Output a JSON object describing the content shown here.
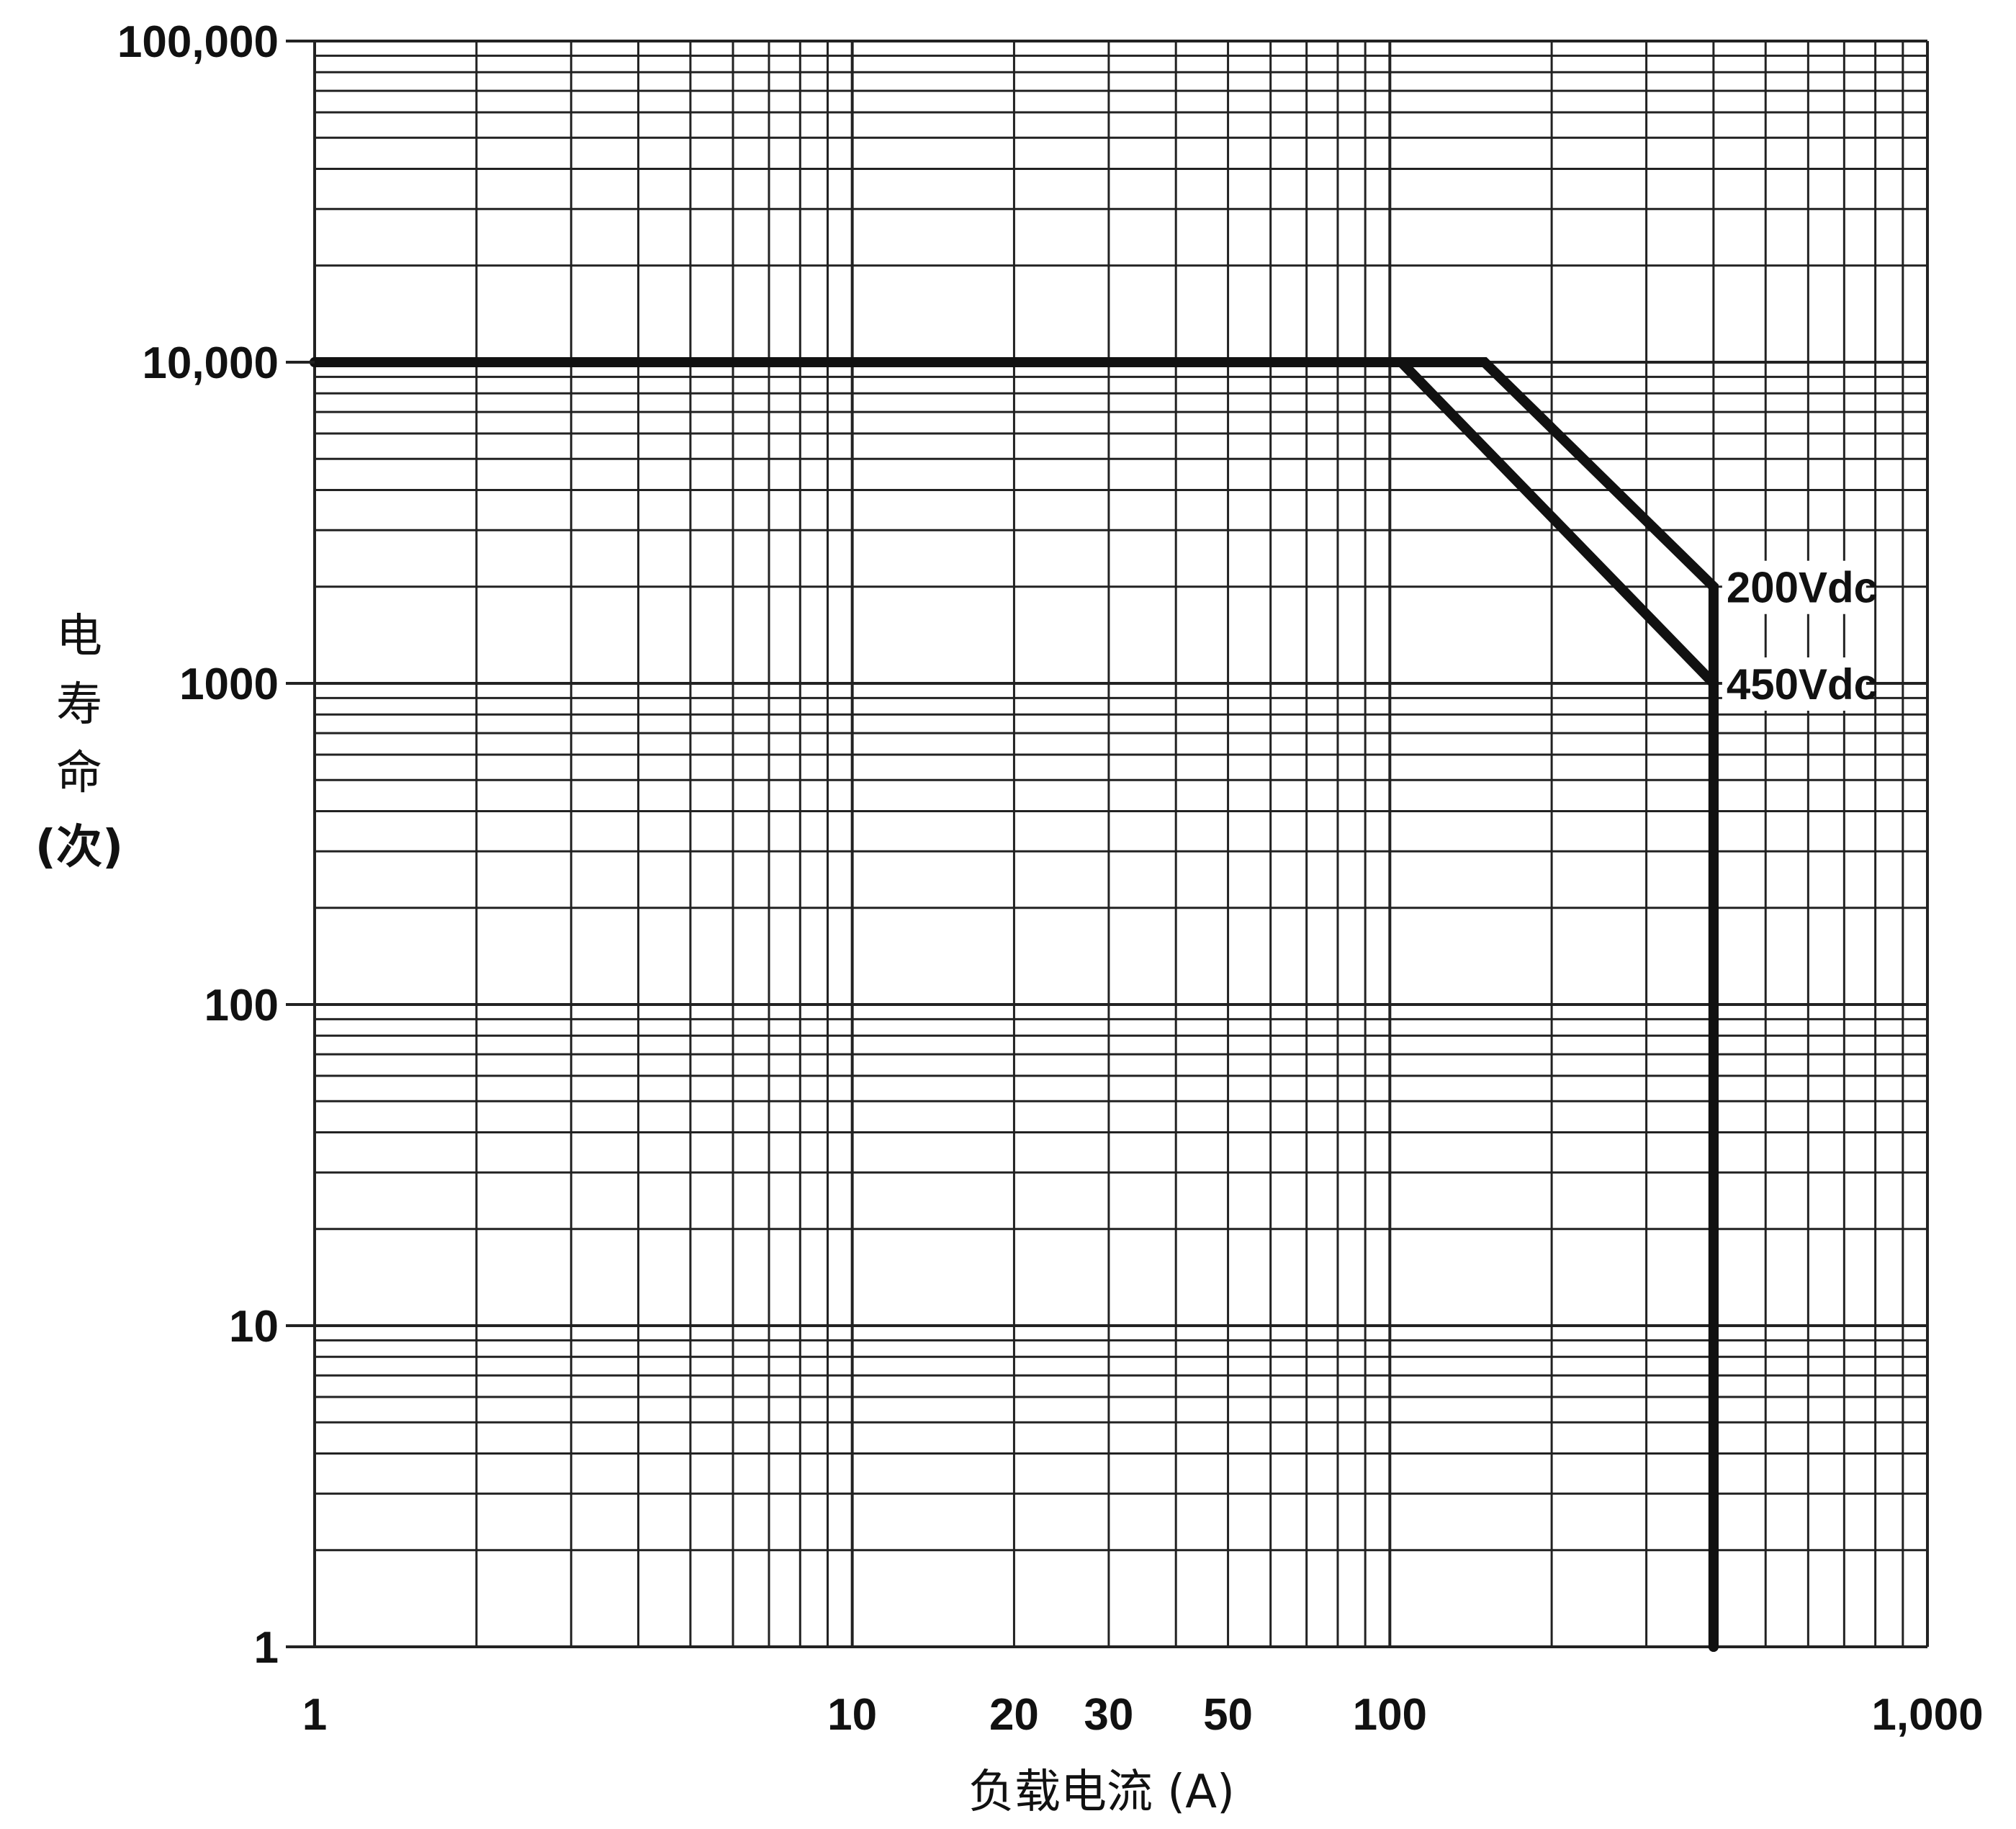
{
  "chart_data": {
    "type": "line",
    "x_scale": "log",
    "y_scale": "log",
    "xlim": [
      1,
      1000
    ],
    "ylim": [
      1,
      100000
    ],
    "grid": true,
    "xlabel": "负载电流 (A)",
    "ylabel": "电寿命(次)",
    "x_ticks": [
      {
        "value": 1,
        "label": "1"
      },
      {
        "value": 10,
        "label": "10"
      },
      {
        "value": 20,
        "label": "20"
      },
      {
        "value": 30,
        "label": "30"
      },
      {
        "value": 50,
        "label": "50"
      },
      {
        "value": 100,
        "label": "100"
      },
      {
        "value": 1000,
        "label": "1,000"
      }
    ],
    "y_ticks": [
      {
        "value": 1,
        "label": "1"
      },
      {
        "value": 10,
        "label": "10"
      },
      {
        "value": 100,
        "label": "100"
      },
      {
        "value": 1000,
        "label": "1000"
      },
      {
        "value": 10000,
        "label": "10,000"
      },
      {
        "value": 100000,
        "label": "100,000"
      }
    ],
    "series": [
      {
        "name": "200Vdc",
        "points": [
          [
            1,
            10000
          ],
          [
            150,
            10000
          ],
          [
            400,
            2000
          ],
          [
            400,
            1
          ]
        ]
      },
      {
        "name": "450Vdc",
        "points": [
          [
            1,
            10000
          ],
          [
            105,
            10000
          ],
          [
            400,
            1000
          ],
          [
            400,
            1
          ]
        ]
      }
    ]
  }
}
